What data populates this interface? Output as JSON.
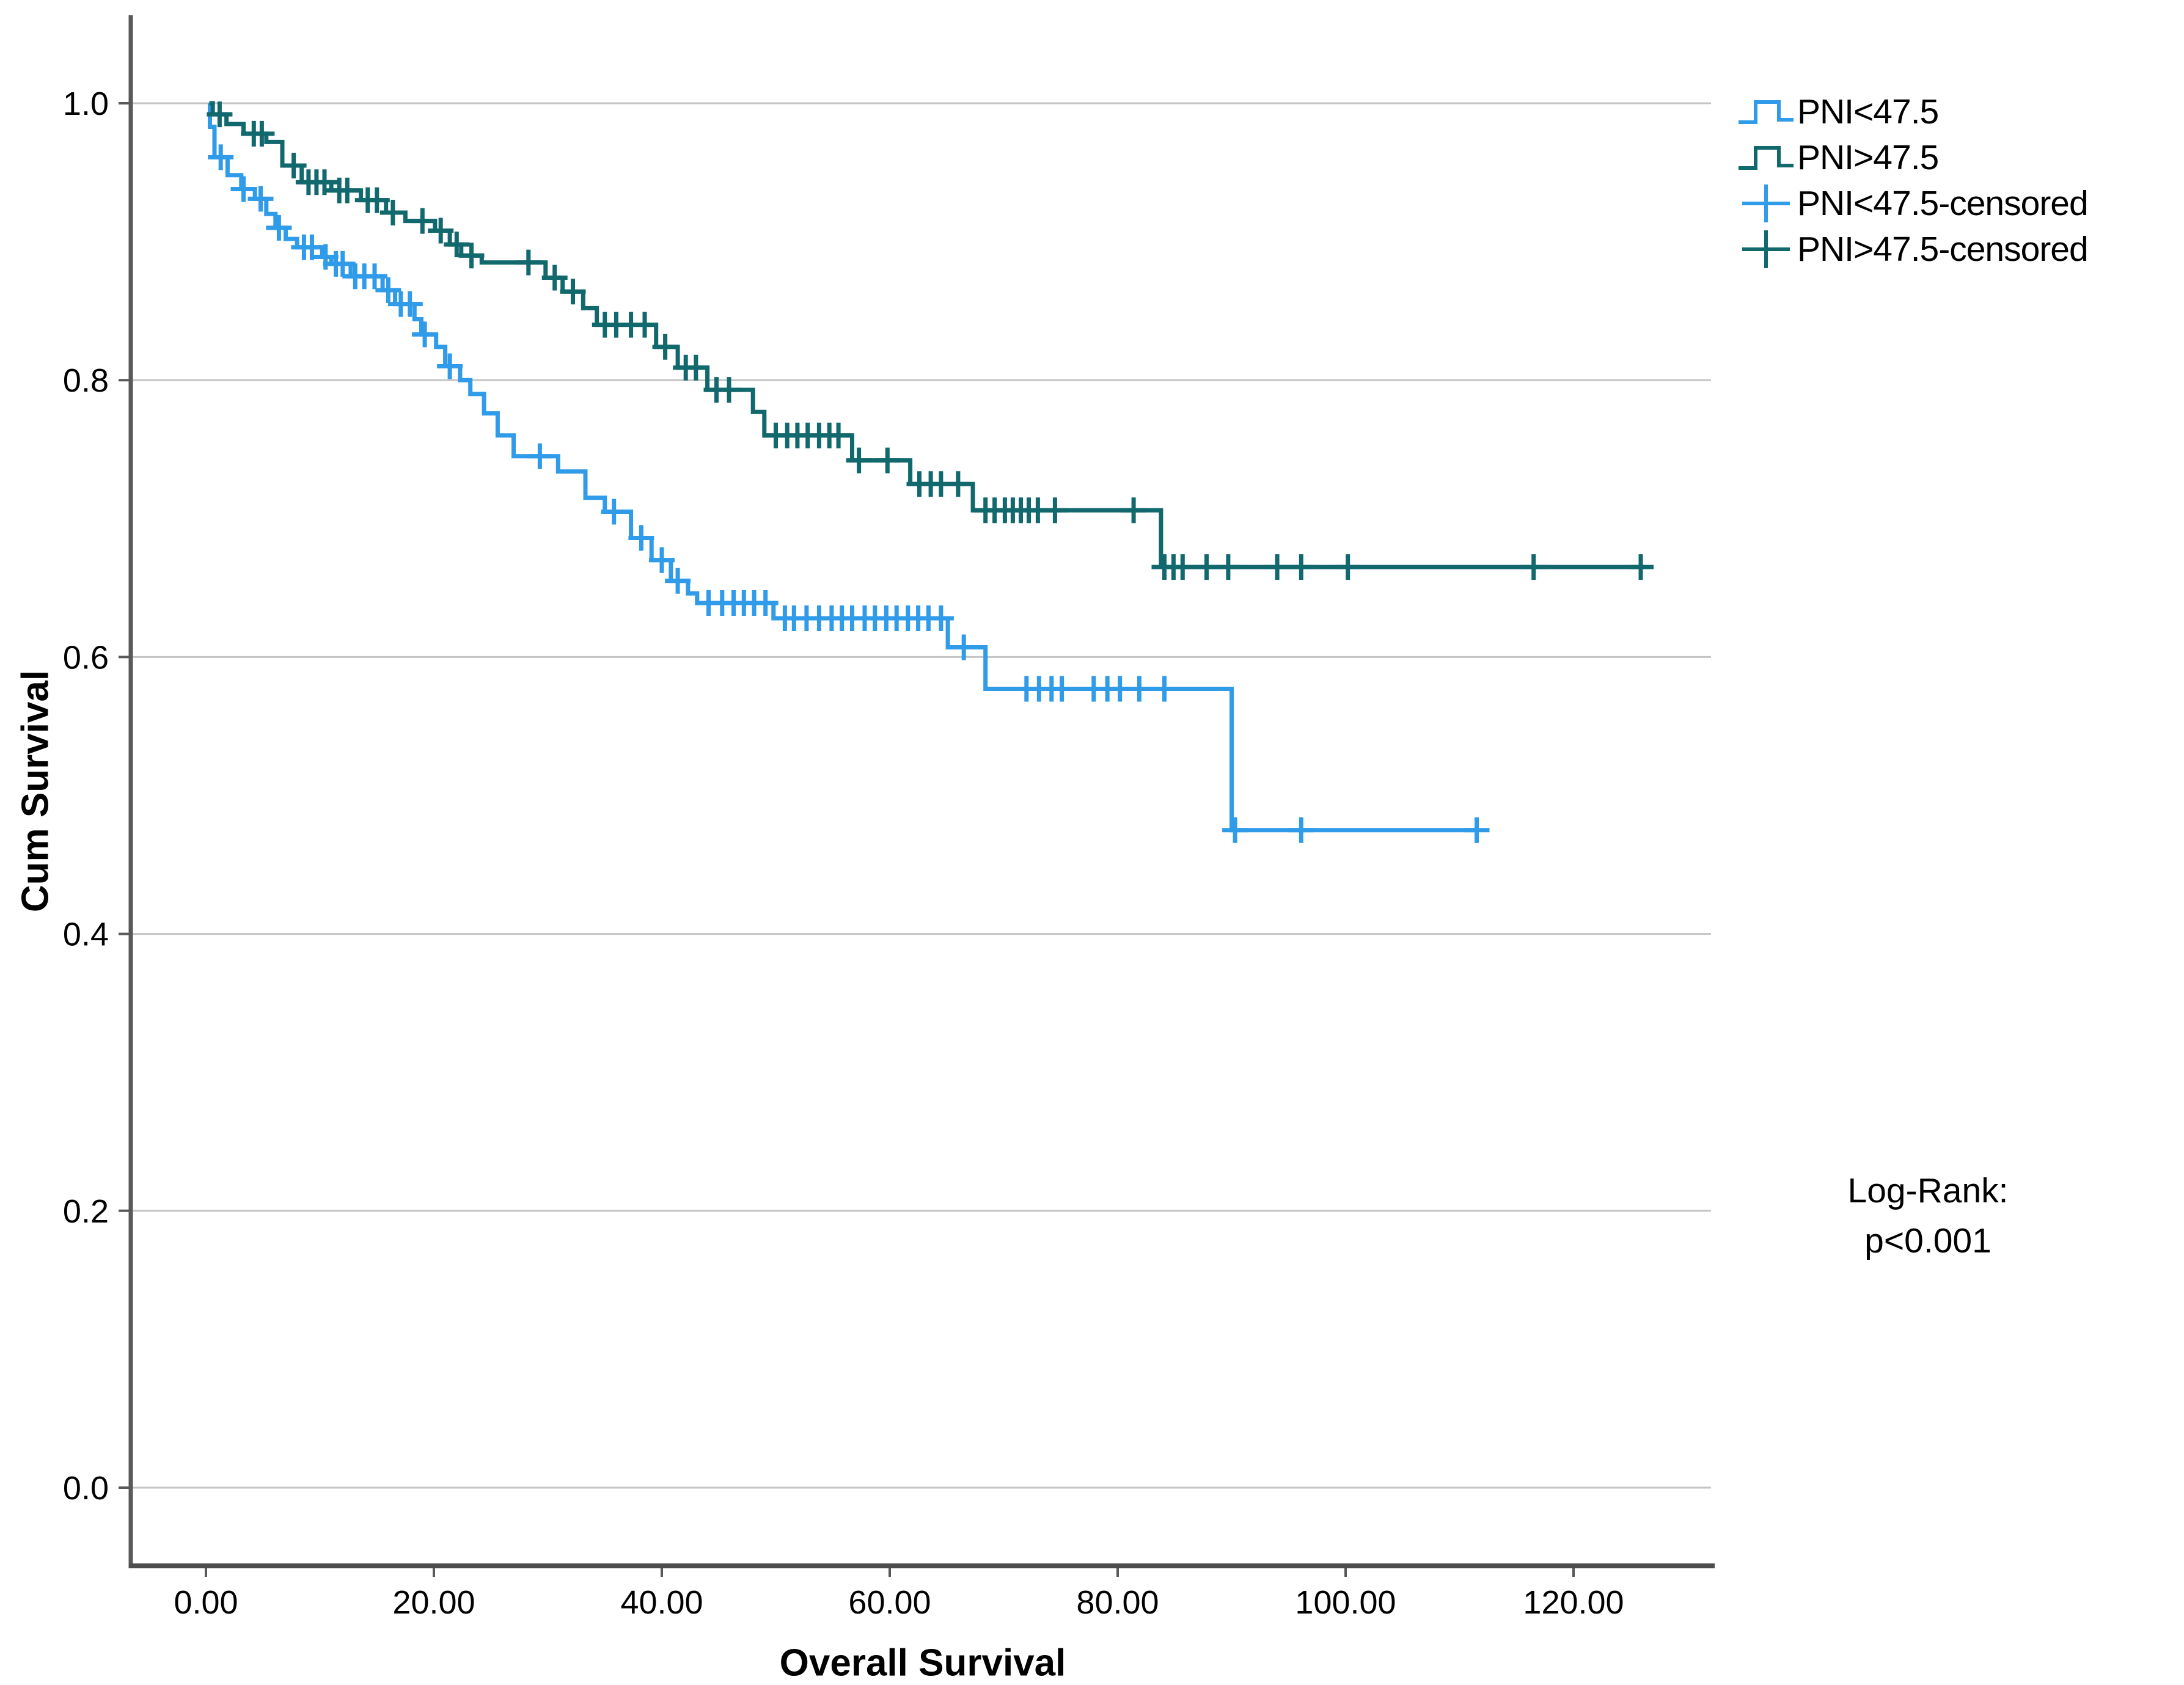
{
  "figure": {
    "y_axis": {
      "title": "Cum Survival",
      "tick_labels": [
        "0.0",
        "0.2",
        "0.4",
        "0.6",
        "0.8",
        "1.0"
      ],
      "tick_values": [
        0.0,
        0.2,
        0.4,
        0.6,
        0.8,
        1.0
      ]
    },
    "x_axis": {
      "title": "Overall Survival",
      "tick_labels": [
        "0.00",
        "20.00",
        "40.00",
        "60.00",
        "80.00",
        "100.00",
        "120.00"
      ],
      "tick_values": [
        0,
        20,
        40,
        60,
        80,
        100,
        120
      ]
    },
    "legend": [
      {
        "label": "PNI<47.5",
        "symbol": "step",
        "color": "#2F9BE9"
      },
      {
        "label": "PNI>47.5",
        "symbol": "step",
        "color": "#11686D"
      },
      {
        "label": "PNI<47.5-censored",
        "symbol": "plus",
        "color": "#2F9BE9"
      },
      {
        "label": "PNI>47.5-censored",
        "symbol": "plus",
        "color": "#11686D"
      }
    ],
    "annotation": {
      "line1": "Log-Rank:",
      "line2": "p<0.001"
    }
  },
  "colors": {
    "blue": "#2F9BE9",
    "teal": "#11686D",
    "grid": "#C4C4C4",
    "axis": "#595959",
    "text": "#000000",
    "background": "#FFFFFF"
  },
  "chart_data": {
    "type": "line",
    "subtype": "kaplan_meier_step",
    "title": "",
    "xlabel": "Overall Survival",
    "ylabel": "Cum Survival",
    "xlim": [
      -6.6,
      132
    ],
    "ylim": [
      -0.057,
      1.064
    ],
    "x_ticks": [
      0,
      20,
      40,
      60,
      80,
      100,
      120
    ],
    "y_ticks": [
      0.0,
      0.2,
      0.4,
      0.6,
      0.8,
      1.0
    ],
    "grid": "horizontal",
    "legend_position": "top-right",
    "annotation": "Log-Rank: p<0.001",
    "series": [
      {
        "name": "PNI<47.5",
        "color": "#2F9BE9",
        "end_time": 111.6,
        "steps": [
          [
            0.3,
            1.0
          ],
          [
            0.35,
            0.983
          ],
          [
            0.75,
            0.961
          ],
          [
            1.9,
            0.948
          ],
          [
            3.1,
            0.938
          ],
          [
            4.3,
            0.931
          ],
          [
            5.3,
            0.92
          ],
          [
            6.1,
            0.91
          ],
          [
            7.0,
            0.902
          ],
          [
            8.0,
            0.896
          ],
          [
            10.2,
            0.889
          ],
          [
            11.0,
            0.884
          ],
          [
            12.7,
            0.875
          ],
          [
            15.5,
            0.865
          ],
          [
            16.6,
            0.855
          ],
          [
            18.3,
            0.844
          ],
          [
            18.9,
            0.833
          ],
          [
            20.2,
            0.824
          ],
          [
            21.0,
            0.81
          ],
          [
            22.3,
            0.8
          ],
          [
            23.2,
            0.79
          ],
          [
            24.4,
            0.776
          ],
          [
            25.6,
            0.76
          ],
          [
            27.0,
            0.745
          ],
          [
            30.9,
            0.734
          ],
          [
            33.3,
            0.715
          ],
          [
            35.0,
            0.705
          ],
          [
            37.3,
            0.686
          ],
          [
            39.1,
            0.67
          ],
          [
            40.8,
            0.655
          ],
          [
            42.3,
            0.646
          ],
          [
            43.1,
            0.639
          ],
          [
            49.8,
            0.628
          ],
          [
            65.1,
            0.607
          ],
          [
            68.4,
            0.577
          ],
          [
            90.0,
            0.475
          ]
        ],
        "censored": [
          [
            1.3,
            0.961
          ],
          [
            3.3,
            0.938
          ],
          [
            4.8,
            0.931
          ],
          [
            6.4,
            0.91
          ],
          [
            8.6,
            0.896
          ],
          [
            9.3,
            0.896
          ],
          [
            10.5,
            0.889
          ],
          [
            11.4,
            0.884
          ],
          [
            12.0,
            0.884
          ],
          [
            13.1,
            0.875
          ],
          [
            13.9,
            0.875
          ],
          [
            14.8,
            0.875
          ],
          [
            16.0,
            0.865
          ],
          [
            17.1,
            0.855
          ],
          [
            17.9,
            0.855
          ],
          [
            19.2,
            0.833
          ],
          [
            21.4,
            0.81
          ],
          [
            29.3,
            0.745
          ],
          [
            35.8,
            0.705
          ],
          [
            38.2,
            0.686
          ],
          [
            40.0,
            0.67
          ],
          [
            41.4,
            0.655
          ],
          [
            44.1,
            0.639
          ],
          [
            45.3,
            0.639
          ],
          [
            46.3,
            0.639
          ],
          [
            47.2,
            0.639
          ],
          [
            48.1,
            0.639
          ],
          [
            49.1,
            0.639
          ],
          [
            50.8,
            0.628
          ],
          [
            51.6,
            0.628
          ],
          [
            52.7,
            0.628
          ],
          [
            53.8,
            0.628
          ],
          [
            54.9,
            0.628
          ],
          [
            55.8,
            0.628
          ],
          [
            56.7,
            0.628
          ],
          [
            57.8,
            0.628
          ],
          [
            58.7,
            0.628
          ],
          [
            59.7,
            0.628
          ],
          [
            60.6,
            0.628
          ],
          [
            61.6,
            0.628
          ],
          [
            62.5,
            0.628
          ],
          [
            63.4,
            0.628
          ],
          [
            64.5,
            0.628
          ],
          [
            66.5,
            0.607
          ],
          [
            72.0,
            0.577
          ],
          [
            73.1,
            0.577
          ],
          [
            74.2,
            0.577
          ],
          [
            75.1,
            0.577
          ],
          [
            77.9,
            0.577
          ],
          [
            79.1,
            0.577
          ],
          [
            80.2,
            0.577
          ],
          [
            81.9,
            0.577
          ],
          [
            84.1,
            0.577
          ],
          [
            90.3,
            0.475
          ],
          [
            96.1,
            0.475
          ],
          [
            111.5,
            0.475
          ]
        ]
      },
      {
        "name": "PNI>47.5",
        "color": "#11686D",
        "end_time": 126.2,
        "steps": [
          [
            0.3,
            1.0
          ],
          [
            0.6,
            0.992
          ],
          [
            1.8,
            0.985
          ],
          [
            3.3,
            0.978
          ],
          [
            5.3,
            0.972
          ],
          [
            6.7,
            0.955
          ],
          [
            8.4,
            0.943
          ],
          [
            11.0,
            0.937
          ],
          [
            13.6,
            0.93
          ],
          [
            15.8,
            0.921
          ],
          [
            17.5,
            0.915
          ],
          [
            20.1,
            0.908
          ],
          [
            21.4,
            0.898
          ],
          [
            22.4,
            0.89
          ],
          [
            24.2,
            0.885
          ],
          [
            29.8,
            0.874
          ],
          [
            31.3,
            0.864
          ],
          [
            33.1,
            0.852
          ],
          [
            34.3,
            0.84
          ],
          [
            39.5,
            0.824
          ],
          [
            41.4,
            0.809
          ],
          [
            44.0,
            0.793
          ],
          [
            48.0,
            0.777
          ],
          [
            49.0,
            0.76
          ],
          [
            56.7,
            0.742
          ],
          [
            61.8,
            0.725
          ],
          [
            67.3,
            0.706
          ],
          [
            83.8,
            0.665
          ]
        ],
        "censored": [
          [
            1.2,
            0.992
          ],
          [
            4.2,
            0.978
          ],
          [
            4.9,
            0.978
          ],
          [
            7.7,
            0.955
          ],
          [
            9.0,
            0.943
          ],
          [
            9.7,
            0.943
          ],
          [
            10.4,
            0.943
          ],
          [
            11.7,
            0.937
          ],
          [
            12.4,
            0.937
          ],
          [
            14.2,
            0.93
          ],
          [
            15.0,
            0.93
          ],
          [
            16.4,
            0.921
          ],
          [
            19.0,
            0.915
          ],
          [
            20.6,
            0.908
          ],
          [
            22.0,
            0.898
          ],
          [
            23.3,
            0.89
          ],
          [
            28.3,
            0.885
          ],
          [
            30.6,
            0.874
          ],
          [
            32.2,
            0.864
          ],
          [
            35.0,
            0.84
          ],
          [
            36.0,
            0.84
          ],
          [
            37.3,
            0.84
          ],
          [
            38.5,
            0.84
          ],
          [
            40.3,
            0.824
          ],
          [
            42.1,
            0.809
          ],
          [
            43.0,
            0.809
          ],
          [
            44.8,
            0.793
          ],
          [
            45.9,
            0.793
          ],
          [
            50.0,
            0.76
          ],
          [
            51.0,
            0.76
          ],
          [
            51.9,
            0.76
          ],
          [
            52.8,
            0.76
          ],
          [
            53.8,
            0.76
          ],
          [
            54.7,
            0.76
          ],
          [
            55.5,
            0.76
          ],
          [
            57.3,
            0.742
          ],
          [
            59.8,
            0.742
          ],
          [
            62.6,
            0.725
          ],
          [
            63.6,
            0.725
          ],
          [
            64.5,
            0.725
          ],
          [
            66.0,
            0.725
          ],
          [
            68.4,
            0.706
          ],
          [
            69.2,
            0.706
          ],
          [
            70.1,
            0.706
          ],
          [
            70.8,
            0.706
          ],
          [
            71.5,
            0.706
          ],
          [
            72.2,
            0.706
          ],
          [
            73.0,
            0.706
          ],
          [
            74.5,
            0.706
          ],
          [
            81.4,
            0.706
          ],
          [
            84.1,
            0.665
          ],
          [
            84.9,
            0.665
          ],
          [
            85.7,
            0.665
          ],
          [
            87.8,
            0.665
          ],
          [
            89.7,
            0.665
          ],
          [
            94.0,
            0.665
          ],
          [
            96.1,
            0.665
          ],
          [
            100.2,
            0.665
          ],
          [
            116.5,
            0.665
          ],
          [
            125.9,
            0.665
          ]
        ]
      }
    ]
  }
}
